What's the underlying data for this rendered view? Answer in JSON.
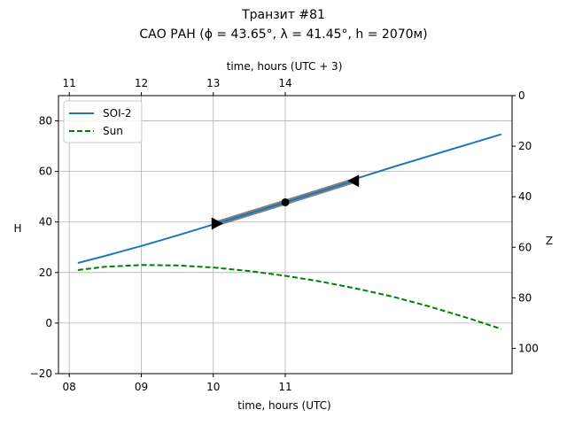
{
  "chart_data": {
    "type": "line",
    "title_line1": "Транзит #81",
    "title_line2": "САО РАН (ϕ = 43.65°, λ = 41.45°, h = 2070м)",
    "xlabel_bottom": "time, hours (UTC)",
    "xlabel_top": "time, hours (UTC + 3)",
    "ylabel_left": "H",
    "ylabel_right": "Z",
    "xlim": [
      7.85,
      14.15
    ],
    "ylim": [
      -20,
      90
    ],
    "bottom_ticks": [
      {
        "value": 8,
        "label": "08"
      },
      {
        "value": 9,
        "label": "09"
      },
      {
        "value": 10,
        "label": "10"
      },
      {
        "value": 11,
        "label": "11"
      }
    ],
    "top_ticks": [
      {
        "value": 8,
        "label": "11"
      },
      {
        "value": 9,
        "label": "12"
      },
      {
        "value": 10,
        "label": "13"
      },
      {
        "value": 11,
        "label": "14"
      }
    ],
    "left_ticks": [
      {
        "value": -20,
        "label": "−20"
      },
      {
        "value": 0,
        "label": "0"
      },
      {
        "value": 20,
        "label": "20"
      },
      {
        "value": 40,
        "label": "40"
      },
      {
        "value": 60,
        "label": "60"
      },
      {
        "value": 80,
        "label": "80"
      }
    ],
    "right_ticks": [
      {
        "value": 90,
        "label": "0"
      },
      {
        "value": 70,
        "label": "20"
      },
      {
        "value": 50,
        "label": "40"
      },
      {
        "value": 30,
        "label": "60"
      },
      {
        "value": 10,
        "label": "80"
      },
      {
        "value": -10,
        "label": "100"
      }
    ],
    "legend": {
      "location": "top-left",
      "entries": [
        {
          "name": "SOI-2",
          "color": "#1f77b4",
          "style": "solid"
        },
        {
          "name": "Sun",
          "color": "#008000",
          "style": "dashed"
        }
      ]
    },
    "series": [
      {
        "name": "SOI-2",
        "color": "#1f77b4",
        "style": "solid",
        "x": [
          8.12,
          8.5,
          9.0,
          9.5,
          10.0,
          10.5,
          11.0,
          11.5,
          12.0,
          12.5,
          13.0,
          13.5,
          14.0
        ],
        "y": [
          23.8,
          26.6,
          30.5,
          34.7,
          39.0,
          43.6,
          48.2,
          52.8,
          57.3,
          61.8,
          66.1,
          70.4,
          74.7
        ]
      },
      {
        "name": "Sun",
        "color": "#008000",
        "style": "dashed",
        "x": [
          8.12,
          8.5,
          9.0,
          9.5,
          10.0,
          10.5,
          11.0,
          11.5,
          12.0,
          12.5,
          13.0,
          13.5,
          14.0
        ],
        "y": [
          21.0,
          22.3,
          23.0,
          22.8,
          22.0,
          20.6,
          18.7,
          16.4,
          13.6,
          10.4,
          6.6,
          2.3,
          -2.3
        ]
      }
    ],
    "transit_segment": {
      "color": "#808080",
      "x": [
        10.05,
        11.0,
        11.95
      ],
      "y": [
        39.4,
        47.8,
        56.3
      ]
    },
    "markers": [
      {
        "shape": "triangle-right",
        "x": 10.05,
        "y": 39.4
      },
      {
        "shape": "circle",
        "x": 11.0,
        "y": 47.8
      },
      {
        "shape": "triangle-left",
        "x": 11.95,
        "y": 56.3
      }
    ]
  }
}
